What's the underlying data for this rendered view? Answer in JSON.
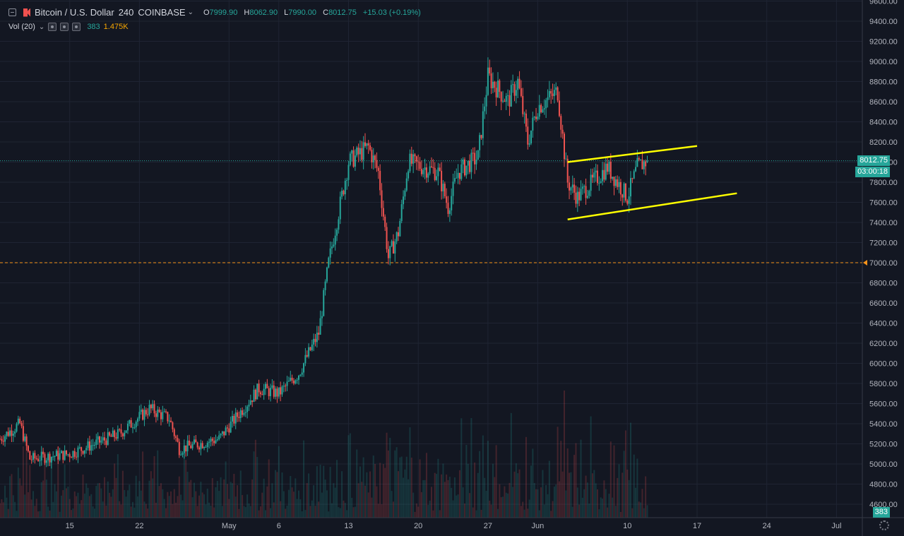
{
  "legend": {
    "symbol": "Bitcoin / U.S. Dollar",
    "interval": "240",
    "exchange": "COINBASE",
    "open_key": "O",
    "open": "7999.90",
    "high_key": "H",
    "high": "8062.90",
    "low_key": "L",
    "low": "7990.00",
    "close_key": "C",
    "close": "8012.75",
    "change": "+15.03 (+0.19%)",
    "collapse_icon": "collapse-icon",
    "logo_icon": "coinbase-logo-icon",
    "chevron_icon": "chevron-down-icon"
  },
  "volume_legend": {
    "label": "Vol (20)",
    "value_small": "383",
    "value_ma": "1.475K"
  },
  "price_axis": {
    "ticks": [
      "9600.00",
      "9400.00",
      "9200.00",
      "9000.00",
      "8800.00",
      "8600.00",
      "8400.00",
      "8200.00",
      "8000.00",
      "7800.00",
      "7600.00",
      "7400.00",
      "7200.00",
      "7000.00",
      "6800.00",
      "6600.00",
      "6400.00",
      "6200.00",
      "6000.00",
      "5800.00",
      "5600.00",
      "5400.00",
      "5200.00",
      "5000.00",
      "4800.00",
      "4600.00"
    ],
    "last_price": "8012.75",
    "countdown": "03:00:18",
    "volume_badge": "383",
    "alert_level": "7000.00"
  },
  "time_axis": {
    "ticks": [
      "15",
      "22",
      "May",
      "6",
      "13",
      "20",
      "27",
      "Jun",
      "10",
      "17",
      "24",
      "Jul"
    ]
  },
  "colors": {
    "background": "#131722",
    "up": "#26a69a",
    "down": "#ef5350",
    "trendline": "#ffff00",
    "alert_line": "#f7931a",
    "grid": "#1f2433"
  },
  "chart_data": {
    "type": "candlestick",
    "symbol": "Bitcoin / U.S. Dollar",
    "interval": "240",
    "exchange": "COINBASE",
    "x_range": [
      "Apr 8",
      "Jul 2"
    ],
    "ylim": [
      4500,
      9700
    ],
    "key_points": [
      {
        "x": "Apr 8",
        "y": 5250
      },
      {
        "x": "Apr 10",
        "y": 5400
      },
      {
        "x": "Apr 11",
        "y": 5050
      },
      {
        "x": "Apr 15",
        "y": 5100
      },
      {
        "x": "Apr 20",
        "y": 5300
      },
      {
        "x": "Apr 23",
        "y": 5550
      },
      {
        "x": "Apr 25",
        "y": 5450
      },
      {
        "x": "Apr 26",
        "y": 5150
      },
      {
        "x": "Apr 30",
        "y": 5250
      },
      {
        "x": "May 4",
        "y": 5750
      },
      {
        "x": "May 6",
        "y": 5700
      },
      {
        "x": "May 8",
        "y": 5900
      },
      {
        "x": "May 10",
        "y": 6300
      },
      {
        "x": "May 11",
        "y": 7000
      },
      {
        "x": "May 13",
        "y": 8000
      },
      {
        "x": "May 15",
        "y": 8150
      },
      {
        "x": "May 16",
        "y": 7900
      },
      {
        "x": "May 17",
        "y": 7050
      },
      {
        "x": "May 18",
        "y": 7300
      },
      {
        "x": "May 19",
        "y": 8000
      },
      {
        "x": "May 22",
        "y": 7900
      },
      {
        "x": "May 23",
        "y": 7550
      },
      {
        "x": "May 24",
        "y": 7900
      },
      {
        "x": "May 26",
        "y": 8050
      },
      {
        "x": "May 27",
        "y": 8850
      },
      {
        "x": "May 29",
        "y": 8600
      },
      {
        "x": "May 30",
        "y": 8800
      },
      {
        "x": "May 31",
        "y": 8200
      },
      {
        "x": "Jun 1",
        "y": 8550
      },
      {
        "x": "Jun 3",
        "y": 8700
      },
      {
        "x": "Jun 4",
        "y": 7800
      },
      {
        "x": "Jun 5",
        "y": 7650
      },
      {
        "x": "Jun 7",
        "y": 7850
      },
      {
        "x": "Jun 8",
        "y": 7950
      },
      {
        "x": "Jun 10",
        "y": 7650
      },
      {
        "x": "Jun 11",
        "y": 7950
      },
      {
        "x": "Jun 12",
        "y": 8012.75
      }
    ],
    "trendlines": [
      {
        "from": {
          "x": "Jun 4",
          "y": 8000
        },
        "to": {
          "x": "Jun 17",
          "y": 8160
        }
      },
      {
        "from": {
          "x": "Jun 4",
          "y": 7430
        },
        "to": {
          "x": "Jun 21",
          "y": 7690
        }
      }
    ],
    "horizontal_lines": [
      {
        "y": 7000,
        "style": "dashed"
      },
      {
        "y": 8012.75,
        "style": "dotted"
      }
    ],
    "grid": true
  }
}
